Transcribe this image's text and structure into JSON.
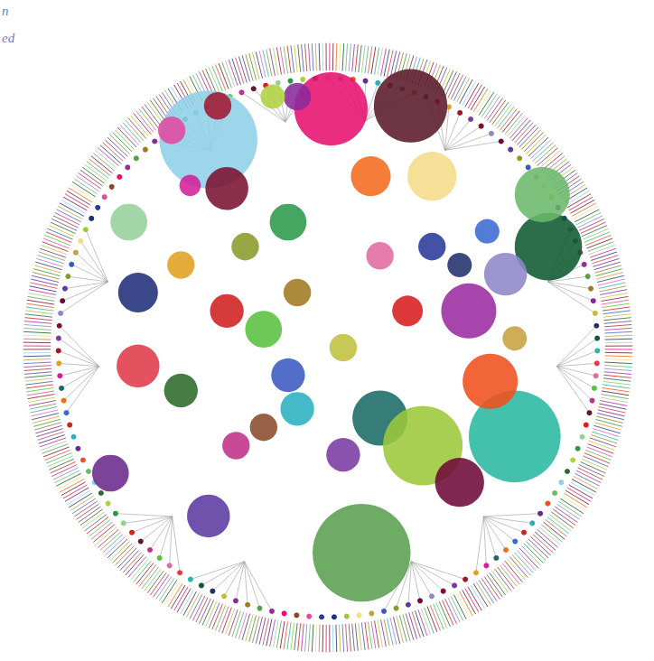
{
  "chart_data": {
    "type": "scatter",
    "annotations": [
      "n",
      "ed"
    ],
    "xlim": [
      -1,
      1
    ],
    "ylim": [
      -1,
      1
    ],
    "tick_labels": false,
    "grid": false,
    "x": [
      -0.39,
      -0.33,
      0.01,
      0.27,
      0.14,
      0.34,
      0.72,
      0.7,
      0.58,
      0.46,
      0.26,
      0.17,
      0.31,
      0.61,
      0.53,
      0.43,
      0.11,
      -0.65,
      -0.45,
      -0.62,
      -0.62,
      -0.71,
      -0.39,
      -0.1,
      -0.13,
      -0.48,
      0.34,
      0.17,
      -0.1,
      -0.27,
      -0.1,
      -0.18,
      -0.36,
      -0.51,
      -0.21,
      -0.33,
      -0.13,
      0.05,
      -0.48,
      0.05,
      -0.21,
      -0.3,
      0.52,
      0.61,
      0.43
    ],
    "y": [
      0.68,
      0.52,
      0.78,
      0.79,
      0.56,
      0.56,
      0.33,
      0.5,
      0.24,
      0.12,
      0.12,
      -0.23,
      -0.32,
      -0.29,
      -0.11,
      -0.44,
      -0.67,
      0.41,
      0.53,
      0.18,
      -0.06,
      -0.41,
      -0.55,
      0.18,
      0.41,
      0.27,
      0.33,
      0.3,
      -0.2,
      0.33,
      0.82,
      0.82,
      0.79,
      0.71,
      0.06,
      0.12,
      -0.09,
      0.0,
      -0.14,
      -0.35,
      -0.26,
      -0.32,
      0.38,
      0.03,
      0.27
    ],
    "sizes": [
      0.16,
      0.07,
      0.12,
      0.12,
      0.065,
      0.08,
      0.11,
      0.09,
      0.07,
      0.09,
      0.05,
      0.09,
      0.13,
      0.15,
      0.09,
      0.08,
      0.16,
      0.06,
      0.035,
      0.065,
      0.07,
      0.06,
      0.07,
      0.045,
      0.06,
      0.045,
      0.045,
      0.045,
      0.055,
      0.045,
      0.045,
      0.04,
      0.045,
      0.045,
      0.06,
      0.055,
      0.055,
      0.045,
      0.055,
      0.055,
      0.045,
      0.045,
      0.04,
      0.04,
      0.04
    ],
    "colors": [
      "#8fd0e8",
      "#7a1230",
      "#e8106f",
      "#5a1a2a",
      "#f26b1e",
      "#f5dc8a",
      "#0f5a30",
      "#6ab86a",
      "#8f86c9",
      "#9b2ba0",
      "#d81e20",
      "#1a6a66",
      "#9cc83a",
      "#29b8a0",
      "#f0501e",
      "#6e0a3a",
      "#5aa050",
      "#95d09a",
      "#d0209a",
      "#1f2f7a",
      "#e03a4a",
      "#6a2a8a",
      "#5a3aa0",
      "#a07a20",
      "#2a9a4a",
      "#e0a020",
      "#2a3a9a",
      "#e06aa0",
      "#2ab0c0",
      "#8a9a2a",
      "#8a2a9a",
      "#b0d040",
      "#a01830",
      "#e04aa0",
      "#5ac040",
      "#d02020",
      "#3a5ac0",
      "#c0c040",
      "#2a6a2a",
      "#7a3aa0",
      "#8a4a2a",
      "#c0308a",
      "#3a6ad0",
      "#c8a040",
      "#20306a"
    ]
  }
}
